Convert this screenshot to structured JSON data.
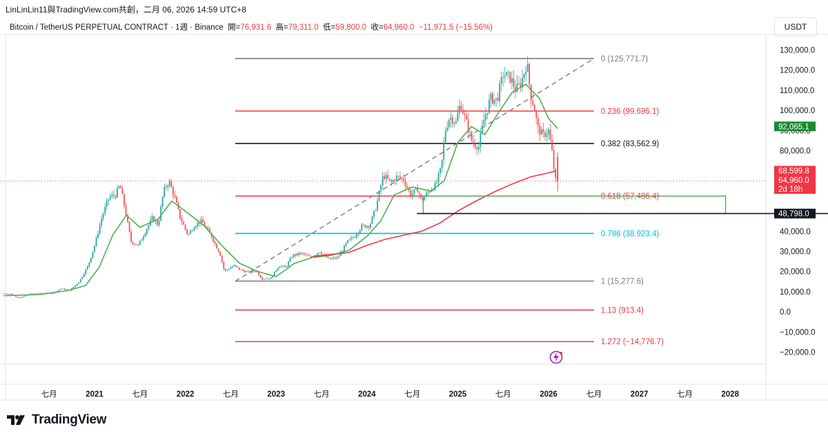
{
  "header": {
    "attribution": "LinLinLin11與TradingView.com共創，二月 06, 2026 14:59 UTC+8",
    "symbol": "Bitcoin / TetherUS PERPETUAL CONTRACT · 1週 · Binance",
    "open_label": "開=",
    "open_value": "76,931.6",
    "high_label": "高=",
    "high_value": "79,311.0",
    "low_label": "低=",
    "low_value": "59,800.0",
    "close_label": "收=",
    "close_value": "64,960.0",
    "change_value": "−11,971.5 (−15.56%)"
  },
  "currency_button": "USDT",
  "brand": "TradingView",
  "colors": {
    "up": "#26a69a",
    "down": "#ef5350",
    "fib_gray": "#787b86",
    "fib_red": "#f23645",
    "fib_black": "#131722",
    "fib_cyan": "#00bcd4",
    "ma_green": "#4caf50",
    "ma_red": "#f23645"
  },
  "chart_data": {
    "type": "candlestick",
    "interval": "1週",
    "ylim": [
      -25000,
      135000
    ],
    "yticks": [
      "130,000.0",
      "120,000.0",
      "110,000.0",
      "100,000.0",
      "90,000.0",
      "80,000.0",
      "40,000.0",
      "30,000.0",
      "20,000.0",
      "10,000.0",
      "0.0",
      "−10,000.0",
      "−20,000.0"
    ],
    "ytick_values": [
      130000,
      120000,
      110000,
      100000,
      90000,
      80000,
      40000,
      30000,
      20000,
      10000,
      0,
      -10000,
      -20000
    ],
    "xticks": [
      "七月",
      "2021",
      "七月",
      "2022",
      "七月",
      "2023",
      "七月",
      "2024",
      "七月",
      "2025",
      "七月",
      "2026",
      "七月",
      "2027",
      "七月",
      "2028"
    ],
    "xtick_values": [
      2020.5,
      2021.0,
      2021.5,
      2022.0,
      2022.5,
      2023.0,
      2023.5,
      2024.0,
      2024.5,
      2025.0,
      2025.5,
      2026.0,
      2026.5,
      2027.0,
      2027.5,
      2028.0
    ],
    "xlim": [
      2020.0,
      2028.2
    ],
    "price_path": [
      [
        2020.0,
        9100
      ],
      [
        2020.1,
        8800
      ],
      [
        2020.2,
        6800
      ],
      [
        2020.3,
        8800
      ],
      [
        2020.45,
        9300
      ],
      [
        2020.55,
        9200
      ],
      [
        2020.65,
        11500
      ],
      [
        2020.75,
        10700
      ],
      [
        2020.85,
        15000
      ],
      [
        2020.95,
        23000
      ],
      [
        2021.02,
        33000
      ],
      [
        2021.1,
        47000
      ],
      [
        2021.18,
        57000
      ],
      [
        2021.25,
        58000
      ],
      [
        2021.3,
        63000
      ],
      [
        2021.36,
        50000
      ],
      [
        2021.42,
        35000
      ],
      [
        2021.5,
        33000
      ],
      [
        2021.58,
        40000
      ],
      [
        2021.66,
        47000
      ],
      [
        2021.72,
        43000
      ],
      [
        2021.78,
        60000
      ],
      [
        2021.84,
        65000
      ],
      [
        2021.9,
        57000
      ],
      [
        2021.96,
        47000
      ],
      [
        2022.05,
        38000
      ],
      [
        2022.12,
        43000
      ],
      [
        2022.2,
        45000
      ],
      [
        2022.3,
        38000
      ],
      [
        2022.4,
        29000
      ],
      [
        2022.45,
        20000
      ],
      [
        2022.55,
        23000
      ],
      [
        2022.62,
        21000
      ],
      [
        2022.72,
        19500
      ],
      [
        2022.8,
        20500
      ],
      [
        2022.86,
        16500
      ],
      [
        2022.96,
        16600
      ],
      [
        2023.05,
        23000
      ],
      [
        2023.12,
        22000
      ],
      [
        2023.2,
        28000
      ],
      [
        2023.3,
        29000
      ],
      [
        2023.4,
        27000
      ],
      [
        2023.5,
        30000
      ],
      [
        2023.6,
        26000
      ],
      [
        2023.7,
        27000
      ],
      [
        2023.8,
        34500
      ],
      [
        2023.88,
        37500
      ],
      [
        2023.96,
        42500
      ],
      [
        2024.05,
        43000
      ],
      [
        2024.12,
        52000
      ],
      [
        2024.2,
        68000
      ],
      [
        2024.28,
        64000
      ],
      [
        2024.35,
        67000
      ],
      [
        2024.42,
        66000
      ],
      [
        2024.5,
        58000
      ],
      [
        2024.58,
        61000
      ],
      [
        2024.62,
        55000
      ],
      [
        2024.7,
        60000
      ],
      [
        2024.78,
        63000
      ],
      [
        2024.84,
        72000
      ],
      [
        2024.88,
        90000
      ],
      [
        2024.93,
        97000
      ],
      [
        2025.0,
        94000
      ],
      [
        2025.05,
        104000
      ],
      [
        2025.1,
        96000
      ],
      [
        2025.18,
        84000
      ],
      [
        2025.25,
        82000
      ],
      [
        2025.3,
        94000
      ],
      [
        2025.38,
        106000
      ],
      [
        2025.45,
        105000
      ],
      [
        2025.52,
        118000
      ],
      [
        2025.6,
        116000
      ],
      [
        2025.66,
        110000
      ],
      [
        2025.72,
        114000
      ],
      [
        2025.78,
        124000
      ],
      [
        2025.82,
        108000
      ],
      [
        2025.86,
        102000
      ],
      [
        2025.9,
        91000
      ],
      [
        2025.96,
        87500
      ],
      [
        2026.02,
        90000
      ],
      [
        2026.06,
        78500
      ],
      [
        2026.09,
        66000
      ],
      [
        2026.1,
        64960
      ]
    ],
    "ma_green": [
      [
        2020.0,
        8000
      ],
      [
        2020.4,
        8600
      ],
      [
        2020.7,
        10500
      ],
      [
        2020.9,
        13000
      ],
      [
        2021.05,
        22000
      ],
      [
        2021.2,
        38000
      ],
      [
        2021.35,
        48000
      ],
      [
        2021.5,
        42000
      ],
      [
        2021.7,
        46000
      ],
      [
        2021.85,
        55000
      ],
      [
        2022.0,
        50000
      ],
      [
        2022.2,
        43000
      ],
      [
        2022.4,
        33000
      ],
      [
        2022.6,
        24000
      ],
      [
        2022.8,
        20000
      ],
      [
        2023.0,
        17500
      ],
      [
        2023.2,
        24000
      ],
      [
        2023.4,
        27000
      ],
      [
        2023.6,
        28000
      ],
      [
        2023.8,
        30500
      ],
      [
        2024.0,
        37500
      ],
      [
        2024.15,
        45000
      ],
      [
        2024.3,
        58000
      ],
      [
        2024.5,
        62000
      ],
      [
        2024.7,
        60000
      ],
      [
        2024.85,
        65000
      ],
      [
        2025.0,
        84000
      ],
      [
        2025.15,
        92000
      ],
      [
        2025.3,
        88000
      ],
      [
        2025.45,
        99000
      ],
      [
        2025.6,
        109000
      ],
      [
        2025.75,
        113000
      ],
      [
        2025.9,
        106000
      ],
      [
        2026.0,
        96000
      ],
      [
        2026.1,
        91000
      ]
    ],
    "ma_red": [
      [
        2023.4,
        27500
      ],
      [
        2023.6,
        28500
      ],
      [
        2023.8,
        29500
      ],
      [
        2024.0,
        33000
      ],
      [
        2024.2,
        36000
      ],
      [
        2024.4,
        38000
      ],
      [
        2024.6,
        40000
      ],
      [
        2024.8,
        44000
      ],
      [
        2025.0,
        50000
      ],
      [
        2025.2,
        55000
      ],
      [
        2025.4,
        59500
      ],
      [
        2025.6,
        63500
      ],
      [
        2025.8,
        67000
      ],
      [
        2026.0,
        69000
      ],
      [
        2026.08,
        70000
      ]
    ],
    "trendline": [
      [
        2022.55,
        15277.6
      ],
      [
        2026.5,
        125771.7
      ]
    ],
    "fib_x_range": [
      2022.55,
      2026.5
    ],
    "fib_levels": [
      {
        "label": "0 (125,771.7)",
        "value": 125771.7,
        "color": "gray"
      },
      {
        "label": "0.236 (99,695.1)",
        "value": 99695.1,
        "color": "red"
      },
      {
        "label": "0.382 (83,562.9)",
        "value": 83562.9,
        "color": "black"
      },
      {
        "label": "0.618 (57,486.4)",
        "value": 57486.4,
        "color": "red"
      },
      {
        "label": "0.786 (38,923.4)",
        "value": 38923.4,
        "color": "cyan"
      },
      {
        "label": "1 (15,277.6)",
        "value": 15277.6,
        "color": "gray"
      },
      {
        "label": "1.13 (913.4)",
        "value": 913.4,
        "color": "red"
      },
      {
        "label": "1.272 (−14,776.7)",
        "value": -14776.7,
        "color": "red"
      }
    ],
    "zone_box": {
      "x_from": 2024.62,
      "x_to": 2027.95,
      "y_high": 57486.4,
      "y_low": 48798.0
    },
    "support_line": {
      "value": 48798.0,
      "x_from": 2024.55
    },
    "price_tags": [
      {
        "text": "92,065.1",
        "value": 92065.1,
        "bg": "#1b8a2f"
      },
      {
        "text": "68,599.8",
        "value": 68599.8,
        "bg": "#f23645"
      },
      {
        "text": "64,960.0",
        "value": 64960.0,
        "bg": "#f23645"
      },
      {
        "text": "2d 18h",
        "value": 64960.0,
        "bg": "#f23645"
      },
      {
        "text": "48,798.0",
        "value": 48798.0,
        "bg": "#131722"
      }
    ]
  }
}
